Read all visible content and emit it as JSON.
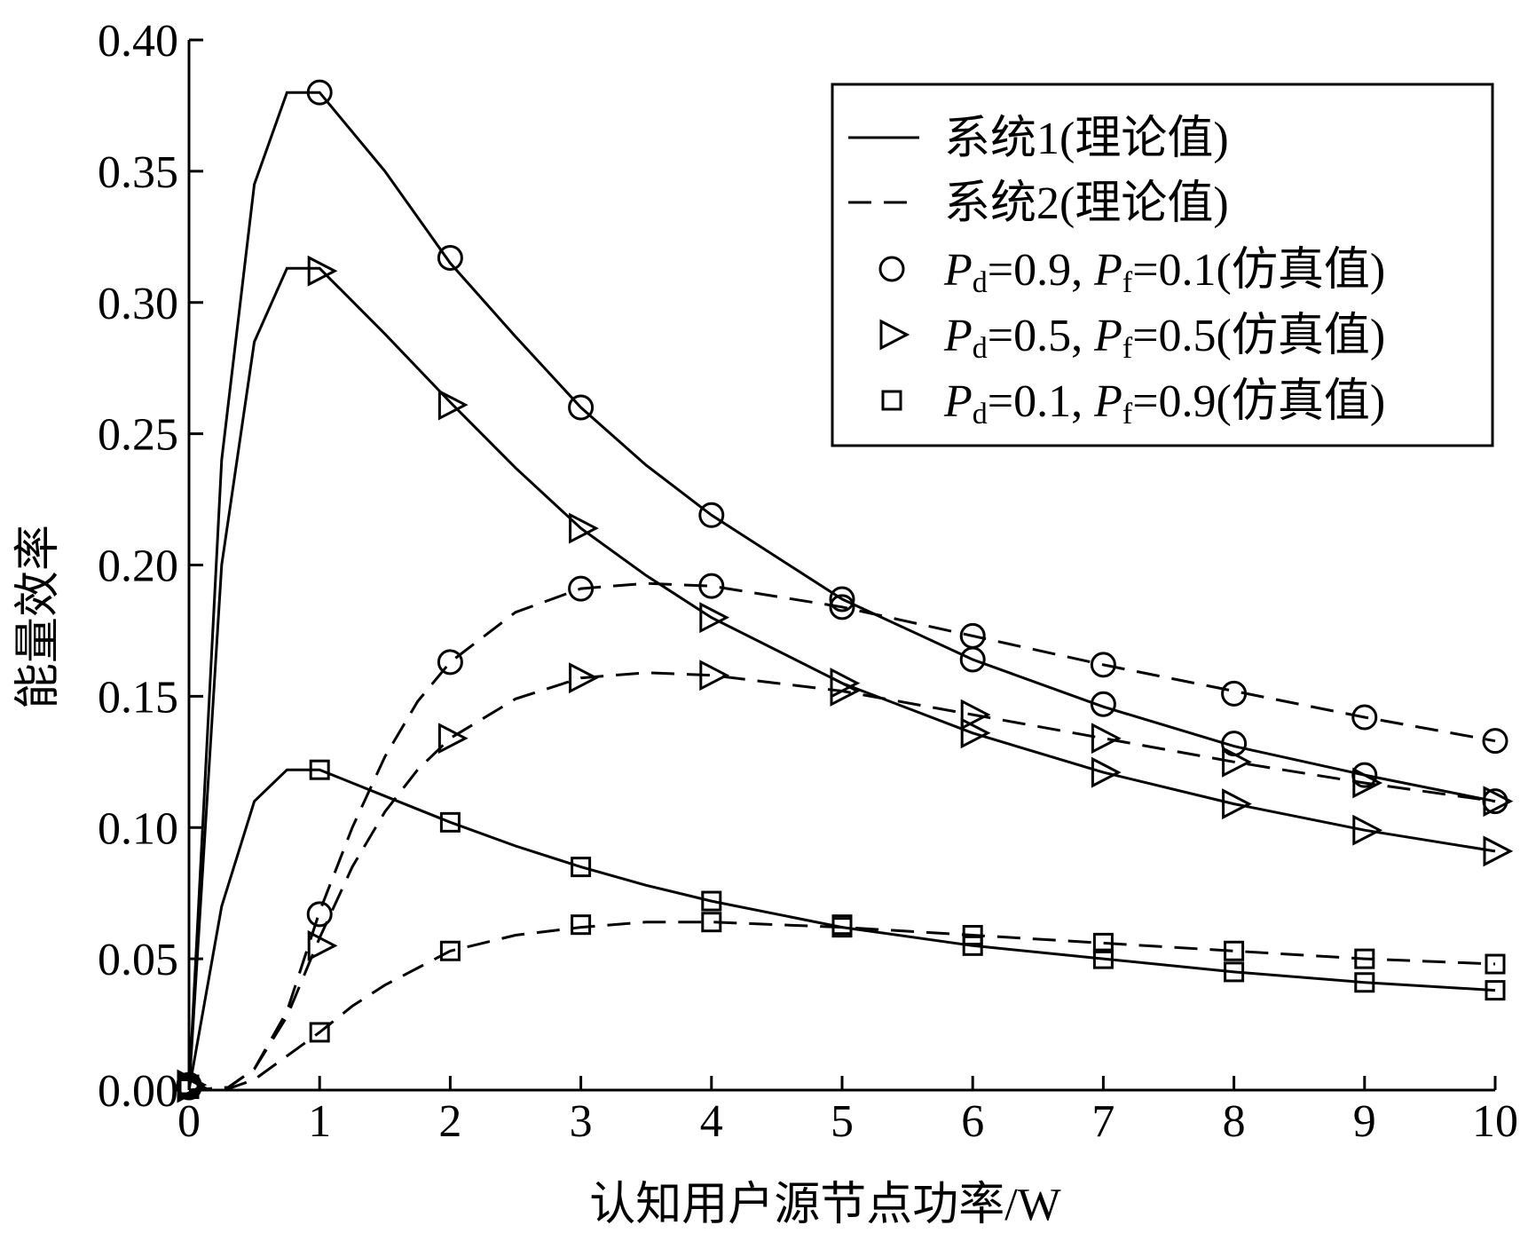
{
  "chart_data": {
    "type": "line",
    "title": "",
    "xlabel": "认知用户源节点功率/W",
    "ylabel": "能量效率",
    "xlim": [
      0,
      10
    ],
    "ylim": [
      0,
      0.4
    ],
    "x_ticks": [
      "0",
      "1",
      "2",
      "3",
      "4",
      "5",
      "6",
      "7",
      "8",
      "9",
      "10"
    ],
    "y_ticks": [
      "0.00",
      "0.05",
      "0.10",
      "0.15",
      "0.20",
      "0.25",
      "0.30",
      "0.35",
      "0.40"
    ],
    "x_tick_values": [
      0,
      1,
      2,
      3,
      4,
      5,
      6,
      7,
      8,
      9,
      10
    ],
    "y_tick_values": [
      0,
      0.05,
      0.1,
      0.15,
      0.2,
      0.25,
      0.3,
      0.35,
      0.4
    ],
    "grid": false,
    "legend_position": "top-right",
    "legend": [
      {
        "style": "solid",
        "text": "系统1(理论值)"
      },
      {
        "style": "dashed",
        "text": "系统2(理论值)"
      },
      {
        "style": "circle",
        "pd_label": "P",
        "pd_sub": "d",
        "pd_value": "=0.9, ",
        "pf_label": "P",
        "pf_sub": "f",
        "pf_value": "=0.1(仿真值)"
      },
      {
        "style": "triangle",
        "pd_label": "P",
        "pd_sub": "d",
        "pd_value": "=0.5, ",
        "pf_label": "P",
        "pf_sub": "f",
        "pf_value": "=0.5(仿真值)"
      },
      {
        "style": "square",
        "pd_label": "P",
        "pd_sub": "d",
        "pd_value": "=0.1, ",
        "pf_label": "P",
        "pf_sub": "f",
        "pf_value": "=0.9(仿真值)"
      }
    ],
    "series": [
      {
        "system": 1,
        "line": "solid",
        "marker": "circle",
        "curve_x": [
          0,
          0.25,
          0.5,
          0.75,
          1,
          1.5,
          2,
          2.5,
          3,
          3.5,
          4,
          5,
          6,
          7,
          8,
          9,
          10
        ],
        "curve_y": [
          0,
          0.24,
          0.345,
          0.38,
          0.38,
          0.35,
          0.315,
          0.287,
          0.26,
          0.238,
          0.219,
          0.187,
          0.164,
          0.146,
          0.131,
          0.12,
          0.11
        ],
        "marker_x": [
          0,
          1,
          2,
          3,
          4,
          5,
          6,
          7,
          8,
          9,
          10
        ],
        "marker_y": [
          0.002,
          0.38,
          0.317,
          0.26,
          0.219,
          0.187,
          0.164,
          0.147,
          0.132,
          0.12,
          0.11
        ]
      },
      {
        "system": 1,
        "line": "solid",
        "marker": "triangle",
        "curve_x": [
          0,
          0.25,
          0.5,
          0.75,
          1,
          1.5,
          2,
          2.5,
          3,
          3.5,
          4,
          5,
          6,
          7,
          8,
          9,
          10
        ],
        "curve_y": [
          0,
          0.2,
          0.285,
          0.313,
          0.313,
          0.288,
          0.262,
          0.237,
          0.214,
          0.196,
          0.18,
          0.155,
          0.136,
          0.121,
          0.109,
          0.099,
          0.091
        ],
        "marker_x": [
          0,
          1,
          2,
          3,
          4,
          5,
          6,
          7,
          8,
          9,
          10
        ],
        "marker_y": [
          0.002,
          0.312,
          0.261,
          0.214,
          0.18,
          0.155,
          0.136,
          0.121,
          0.109,
          0.099,
          0.091
        ]
      },
      {
        "system": 1,
        "line": "solid",
        "marker": "square",
        "curve_x": [
          0,
          0.25,
          0.5,
          0.75,
          1,
          1.5,
          2,
          2.5,
          3,
          3.5,
          4,
          5,
          6,
          7,
          8,
          9,
          10
        ],
        "curve_y": [
          0,
          0.07,
          0.11,
          0.122,
          0.122,
          0.112,
          0.102,
          0.093,
          0.085,
          0.078,
          0.072,
          0.062,
          0.055,
          0.05,
          0.045,
          0.041,
          0.038
        ],
        "marker_x": [
          0,
          1,
          2,
          3,
          4,
          5,
          6,
          7,
          8,
          9,
          10
        ],
        "marker_y": [
          0.002,
          0.122,
          0.102,
          0.085,
          0.072,
          0.062,
          0.055,
          0.05,
          0.045,
          0.041,
          0.038
        ]
      },
      {
        "system": 2,
        "line": "dashed",
        "marker": "circle",
        "curve_x": [
          0,
          0.3,
          0.5,
          0.75,
          1,
          1.25,
          1.5,
          1.75,
          2,
          2.5,
          3,
          3.5,
          4,
          5,
          6,
          7,
          8,
          9,
          10
        ],
        "curve_y": [
          0,
          0.001,
          0.008,
          0.03,
          0.068,
          0.1,
          0.127,
          0.148,
          0.163,
          0.182,
          0.191,
          0.193,
          0.192,
          0.184,
          0.173,
          0.162,
          0.152,
          0.142,
          0.133
        ],
        "marker_x": [
          0,
          1,
          2,
          3,
          4,
          5,
          6,
          7,
          8,
          9,
          10
        ],
        "marker_y": [
          0.001,
          0.067,
          0.163,
          0.191,
          0.192,
          0.184,
          0.173,
          0.162,
          0.151,
          0.142,
          0.133
        ]
      },
      {
        "system": 2,
        "line": "dashed",
        "marker": "triangle",
        "curve_x": [
          0,
          0.3,
          0.5,
          0.75,
          1,
          1.25,
          1.5,
          1.75,
          2,
          2.5,
          3,
          3.5,
          4,
          5,
          6,
          7,
          8,
          9,
          10
        ],
        "curve_y": [
          0,
          0.001,
          0.008,
          0.028,
          0.058,
          0.085,
          0.106,
          0.122,
          0.134,
          0.149,
          0.157,
          0.159,
          0.158,
          0.152,
          0.143,
          0.134,
          0.125,
          0.117,
          0.11
        ],
        "marker_x": [
          0,
          1,
          2,
          3,
          4,
          5,
          6,
          7,
          8,
          9,
          10
        ],
        "marker_y": [
          0.001,
          0.055,
          0.134,
          0.157,
          0.158,
          0.152,
          0.143,
          0.134,
          0.125,
          0.117,
          0.11
        ]
      },
      {
        "system": 2,
        "line": "dashed",
        "marker": "square",
        "curve_x": [
          0,
          0.3,
          0.5,
          0.75,
          1,
          1.25,
          1.5,
          2,
          2.5,
          3,
          3.5,
          4,
          5,
          6,
          7,
          8,
          9,
          10
        ],
        "curve_y": [
          0,
          0.0005,
          0.004,
          0.013,
          0.022,
          0.032,
          0.04,
          0.053,
          0.059,
          0.062,
          0.064,
          0.064,
          0.062,
          0.059,
          0.056,
          0.053,
          0.05,
          0.048
        ],
        "marker_x": [
          0,
          1,
          2,
          3,
          4,
          5,
          6,
          7,
          8,
          9,
          10
        ],
        "marker_y": [
          0.0005,
          0.022,
          0.053,
          0.063,
          0.064,
          0.063,
          0.059,
          0.056,
          0.053,
          0.05,
          0.048
        ]
      }
    ]
  }
}
